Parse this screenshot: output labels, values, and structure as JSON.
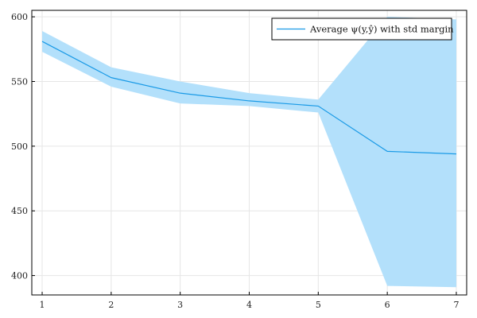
{
  "chart_data": {
    "type": "line",
    "x": [
      1,
      2,
      3,
      4,
      5,
      6,
      7
    ],
    "series": [
      {
        "name": "Average ψ(y,ŷ) with std margin",
        "values": [
          581,
          553,
          541,
          535,
          531,
          496,
          494
        ],
        "band_lower": [
          573,
          546,
          533,
          531,
          526,
          392,
          391
        ],
        "band_upper": [
          589,
          561,
          550,
          541,
          536,
          600,
          598
        ],
        "color": "#1a9ae6",
        "band_color": "#b3e0fb"
      }
    ],
    "xlim": [
      0.85,
      7.15
    ],
    "ylim": [
      385,
      605
    ],
    "xticks": [
      1,
      2,
      3,
      4,
      5,
      6,
      7
    ],
    "yticks": [
      400,
      450,
      500,
      550,
      600
    ],
    "title": "",
    "xlabel": "",
    "ylabel": "",
    "grid": true,
    "legend_position": "top-right"
  }
}
